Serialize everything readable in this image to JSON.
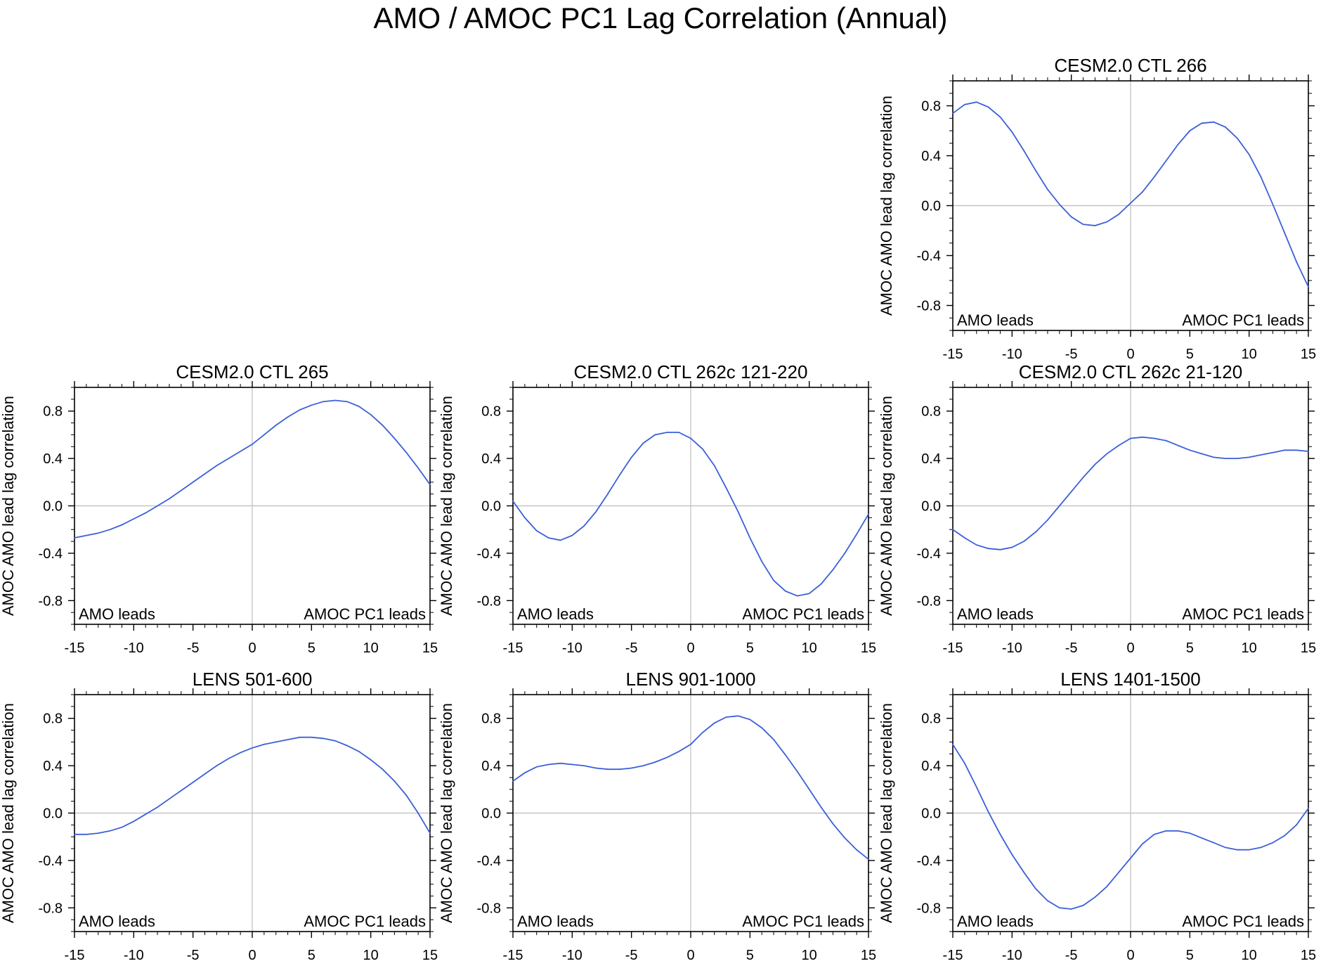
{
  "figure": {
    "title": "AMO / AMOC PC1 Lag Correlation (Annual)",
    "line_color": "#3b5fd9"
  },
  "chart_data": [
    {
      "type": "line",
      "title": "CESM2.0 CTL 266",
      "xlabel": "",
      "ylabel": "AMOC AMO lead lag correlation",
      "xlim": [
        -15,
        15
      ],
      "ylim": [
        -1.0,
        1.0
      ],
      "xticks": [
        -15,
        -10,
        -5,
        0,
        5,
        10,
        15
      ],
      "yticks": [
        -0.8,
        -0.4,
        0.0,
        0.4,
        0.8
      ],
      "ytick_labels": [
        "-0.8",
        "-0.4",
        "0.0",
        "0.4",
        "0.8"
      ],
      "left_annotation": "AMO leads",
      "right_annotation": "AMOC PC1 leads",
      "x": [
        -15,
        -14,
        -13,
        -12,
        -11,
        -10,
        -9,
        -8,
        -7,
        -6,
        -5,
        -4,
        -3,
        -2,
        -1,
        0,
        1,
        2,
        3,
        4,
        5,
        6,
        7,
        8,
        9,
        10,
        11,
        12,
        13,
        14,
        15
      ],
      "values": [
        0.74,
        0.81,
        0.83,
        0.79,
        0.71,
        0.59,
        0.44,
        0.28,
        0.13,
        0.01,
        -0.09,
        -0.15,
        -0.16,
        -0.13,
        -0.07,
        0.02,
        0.11,
        0.23,
        0.36,
        0.49,
        0.6,
        0.66,
        0.67,
        0.63,
        0.54,
        0.41,
        0.23,
        0.01,
        -0.22,
        -0.45,
        -0.65
      ]
    },
    {
      "type": "line",
      "title": "CESM2.0 CTL 265",
      "xlabel": "",
      "ylabel": "AMOC AMO lead lag correlation",
      "xlim": [
        -15,
        15
      ],
      "ylim": [
        -1.0,
        1.0
      ],
      "xticks": [
        -15,
        -10,
        -5,
        0,
        5,
        10,
        15
      ],
      "yticks": [
        -0.8,
        -0.4,
        0.0,
        0.4,
        0.8
      ],
      "ytick_labels": [
        "-0.8",
        "-0.4",
        "0.0",
        "0.4",
        "0.8"
      ],
      "left_annotation": "AMO leads",
      "right_annotation": "AMOC PC1 leads",
      "x": [
        -15,
        -14,
        -13,
        -12,
        -11,
        -10,
        -9,
        -8,
        -7,
        -6,
        -5,
        -4,
        -3,
        -2,
        -1,
        0,
        1,
        2,
        3,
        4,
        5,
        6,
        7,
        8,
        9,
        10,
        11,
        12,
        13,
        14,
        15
      ],
      "values": [
        -0.27,
        -0.25,
        -0.23,
        -0.2,
        -0.16,
        -0.11,
        -0.06,
        0.0,
        0.06,
        0.13,
        0.2,
        0.27,
        0.34,
        0.4,
        0.46,
        0.52,
        0.6,
        0.68,
        0.75,
        0.81,
        0.85,
        0.88,
        0.89,
        0.88,
        0.84,
        0.77,
        0.68,
        0.57,
        0.45,
        0.32,
        0.18
      ]
    },
    {
      "type": "line",
      "title": "CESM2.0 CTL 262c 121-220",
      "xlabel": "",
      "ylabel": "AMOC AMO lead lag correlation",
      "xlim": [
        -15,
        15
      ],
      "ylim": [
        -1.0,
        1.0
      ],
      "xticks": [
        -15,
        -10,
        -5,
        0,
        5,
        10,
        15
      ],
      "yticks": [
        -0.8,
        -0.4,
        0.0,
        0.4,
        0.8
      ],
      "ytick_labels": [
        "-0.8",
        "-0.4",
        "0.0",
        "0.4",
        "0.8"
      ],
      "left_annotation": "AMO leads",
      "right_annotation": "AMOC PC1 leads",
      "x": [
        -15,
        -14,
        -13,
        -12,
        -11,
        -10,
        -9,
        -8,
        -7,
        -6,
        -5,
        -4,
        -3,
        -2,
        -1,
        0,
        1,
        2,
        3,
        4,
        5,
        6,
        7,
        8,
        9,
        10,
        11,
        12,
        13,
        14,
        15
      ],
      "values": [
        0.04,
        -0.1,
        -0.21,
        -0.27,
        -0.29,
        -0.25,
        -0.17,
        -0.05,
        0.1,
        0.26,
        0.41,
        0.53,
        0.6,
        0.62,
        0.62,
        0.57,
        0.48,
        0.34,
        0.15,
        -0.05,
        -0.27,
        -0.47,
        -0.63,
        -0.72,
        -0.76,
        -0.74,
        -0.66,
        -0.54,
        -0.4,
        -0.24,
        -0.07
      ]
    },
    {
      "type": "line",
      "title": "CESM2.0 CTL 262c 21-120",
      "xlabel": "",
      "ylabel": "AMOC AMO lead lag correlation",
      "xlim": [
        -15,
        15
      ],
      "ylim": [
        -1.0,
        1.0
      ],
      "xticks": [
        -15,
        -10,
        -5,
        0,
        5,
        10,
        15
      ],
      "yticks": [
        -0.8,
        -0.4,
        0.0,
        0.4,
        0.8
      ],
      "ytick_labels": [
        "-0.8",
        "-0.4",
        "0.0",
        "0.4",
        "0.8"
      ],
      "left_annotation": "AMO leads",
      "right_annotation": "AMOC PC1 leads",
      "x": [
        -15,
        -14,
        -13,
        -12,
        -11,
        -10,
        -9,
        -8,
        -7,
        -6,
        -5,
        -4,
        -3,
        -2,
        -1,
        0,
        1,
        2,
        3,
        4,
        5,
        6,
        7,
        8,
        9,
        10,
        11,
        12,
        13,
        14,
        15
      ],
      "values": [
        -0.2,
        -0.27,
        -0.33,
        -0.36,
        -0.37,
        -0.35,
        -0.3,
        -0.22,
        -0.12,
        0.0,
        0.12,
        0.24,
        0.35,
        0.44,
        0.51,
        0.57,
        0.58,
        0.57,
        0.55,
        0.51,
        0.47,
        0.44,
        0.41,
        0.4,
        0.4,
        0.41,
        0.43,
        0.45,
        0.47,
        0.47,
        0.46
      ]
    },
    {
      "type": "line",
      "title": "LENS 501-600",
      "xlabel": "",
      "ylabel": "AMOC AMO lead lag correlation",
      "xlim": [
        -15,
        15
      ],
      "ylim": [
        -1.0,
        1.0
      ],
      "xticks": [
        -15,
        -10,
        -5,
        0,
        5,
        10,
        15
      ],
      "yticks": [
        -0.8,
        -0.4,
        0.0,
        0.4,
        0.8
      ],
      "ytick_labels": [
        "-0.8",
        "-0.4",
        "0.0",
        "0.4",
        "0.8"
      ],
      "left_annotation": "AMO leads",
      "right_annotation": "AMOC PC1 leads",
      "x": [
        -15,
        -14,
        -13,
        -12,
        -11,
        -10,
        -9,
        -8,
        -7,
        -6,
        -5,
        -4,
        -3,
        -2,
        -1,
        0,
        1,
        2,
        3,
        4,
        5,
        6,
        7,
        8,
        9,
        10,
        11,
        12,
        13,
        14,
        15
      ],
      "values": [
        -0.18,
        -0.18,
        -0.17,
        -0.15,
        -0.12,
        -0.07,
        -0.01,
        0.05,
        0.12,
        0.19,
        0.26,
        0.33,
        0.4,
        0.46,
        0.51,
        0.55,
        0.58,
        0.6,
        0.62,
        0.64,
        0.64,
        0.63,
        0.61,
        0.57,
        0.52,
        0.45,
        0.37,
        0.27,
        0.15,
        0.0,
        -0.17
      ]
    },
    {
      "type": "line",
      "title": "LENS 901-1000",
      "xlabel": "",
      "ylabel": "AMOC AMO lead lag correlation",
      "xlim": [
        -15,
        15
      ],
      "ylim": [
        -1.0,
        1.0
      ],
      "xticks": [
        -15,
        -10,
        -5,
        0,
        5,
        10,
        15
      ],
      "yticks": [
        -0.8,
        -0.4,
        0.0,
        0.4,
        0.8
      ],
      "ytick_labels": [
        "-0.8",
        "-0.4",
        "0.0",
        "0.4",
        "0.8"
      ],
      "left_annotation": "AMO leads",
      "right_annotation": "AMOC PC1 leads",
      "x": [
        -15,
        -14,
        -13,
        -12,
        -11,
        -10,
        -9,
        -8,
        -7,
        -6,
        -5,
        -4,
        -3,
        -2,
        -1,
        0,
        1,
        2,
        3,
        4,
        5,
        6,
        7,
        8,
        9,
        10,
        11,
        12,
        13,
        14,
        15
      ],
      "values": [
        0.27,
        0.34,
        0.39,
        0.41,
        0.42,
        0.41,
        0.4,
        0.38,
        0.37,
        0.37,
        0.38,
        0.4,
        0.43,
        0.47,
        0.52,
        0.58,
        0.68,
        0.76,
        0.81,
        0.82,
        0.79,
        0.72,
        0.62,
        0.49,
        0.35,
        0.2,
        0.05,
        -0.09,
        -0.21,
        -0.31,
        -0.39
      ]
    },
    {
      "type": "line",
      "title": "LENS 1401-1500",
      "xlabel": "",
      "ylabel": "AMOC AMO lead lag correlation",
      "xlim": [
        -15,
        15
      ],
      "ylim": [
        -1.0,
        1.0
      ],
      "xticks": [
        -15,
        -10,
        -5,
        0,
        5,
        10,
        15
      ],
      "yticks": [
        -0.8,
        -0.4,
        0.0,
        0.4,
        0.8
      ],
      "ytick_labels": [
        "-0.8",
        "-0.4",
        "0.0",
        "0.4",
        "0.8"
      ],
      "left_annotation": "AMO leads",
      "right_annotation": "AMOC PC1 leads",
      "x": [
        -15,
        -14,
        -13,
        -12,
        -11,
        -10,
        -9,
        -8,
        -7,
        -6,
        -5,
        -4,
        -3,
        -2,
        -1,
        0,
        1,
        2,
        3,
        4,
        5,
        6,
        7,
        8,
        9,
        10,
        11,
        12,
        13,
        14,
        15
      ],
      "values": [
        0.58,
        0.42,
        0.22,
        0.01,
        -0.18,
        -0.35,
        -0.5,
        -0.64,
        -0.74,
        -0.8,
        -0.81,
        -0.78,
        -0.71,
        -0.62,
        -0.5,
        -0.38,
        -0.26,
        -0.18,
        -0.15,
        -0.15,
        -0.17,
        -0.21,
        -0.25,
        -0.29,
        -0.31,
        -0.31,
        -0.29,
        -0.25,
        -0.19,
        -0.1,
        0.04
      ]
    }
  ]
}
